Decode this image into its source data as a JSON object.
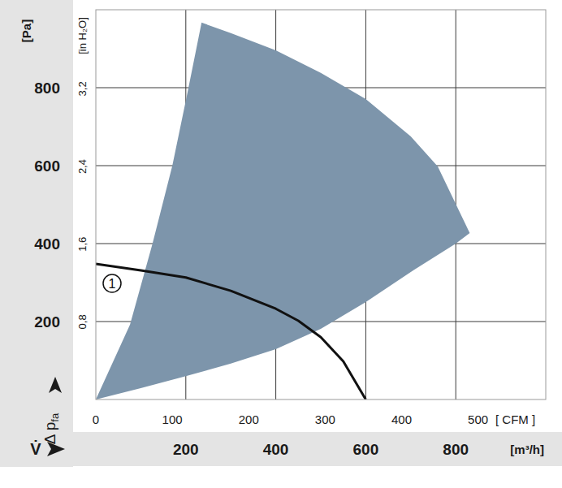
{
  "chart_data": {
    "type": "line",
    "xlabel": "[m³/h]",
    "ylabel": "[Pa]",
    "x2label": "[ CFM ]",
    "y2label": "[in H₂O]",
    "y_symbol": "Δ p",
    "y_symbol_sub": "fa",
    "x_symbol": "V̇",
    "xlim": [
      0,
      1000
    ],
    "xticks": [
      200,
      400,
      600,
      800
    ],
    "x2lim": [
      0,
      588.6
    ],
    "x2ticks": [
      0,
      100,
      200,
      300,
      400,
      500
    ],
    "ylim": [
      0,
      1000
    ],
    "yticks": [
      200,
      400,
      600,
      800
    ],
    "y2lim": [
      0,
      4.015
    ],
    "y2ticks": [
      {
        "value": 0.8,
        "label": "0,8"
      },
      {
        "value": 1.6,
        "label": "1,6"
      },
      {
        "value": 2.4,
        "label": "2,4"
      },
      {
        "value": 3.2,
        "label": "3,2"
      }
    ],
    "grid": true,
    "series": [
      {
        "type": "area",
        "color": "#7d95ab",
        "x": [
          0,
          76,
          126,
          170,
          206,
          235,
          300,
          400,
          500,
          600,
          700,
          760,
          831,
          800,
          700,
          600,
          500,
          400,
          300,
          200,
          100,
          0
        ],
        "values": [
          0,
          192,
          400,
          600,
          800,
          967,
          940,
          896,
          838,
          771,
          675,
          598,
          427,
          400,
          327,
          250,
          181,
          129,
          92,
          60,
          29,
          0
        ]
      },
      {
        "type": "line",
        "name": "1",
        "color": "#111111",
        "x": [
          0,
          100,
          200,
          300,
          400,
          450,
          500,
          550,
          600
        ],
        "values": [
          348,
          331,
          313,
          279,
          233,
          202,
          160,
          98,
          0
        ]
      }
    ]
  }
}
